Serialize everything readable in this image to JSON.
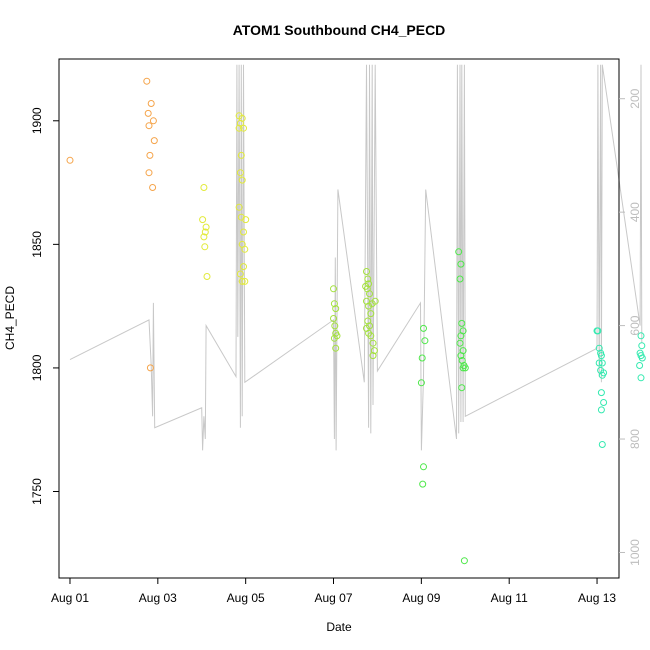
{
  "chart_data": {
    "type": "scatter",
    "title": "ATOM1 Southbound CH4_PECD",
    "xlabel": "Date",
    "ylabel": "CH4_PECD",
    "x_ticks": [
      "Aug 01",
      "Aug 03",
      "Aug 05",
      "Aug 07",
      "Aug 09",
      "Aug 11",
      "Aug 13"
    ],
    "y_ticks": [
      1750,
      1800,
      1850,
      1900
    ],
    "y_right_ticks": [
      200,
      400,
      600,
      800,
      1000
    ],
    "xlim": [
      -0.25,
      12.5
    ],
    "ylim": [
      1715,
      1925
    ],
    "y_right_lim": [
      1045,
      130
    ],
    "y_right_reversed": true,
    "grid": false,
    "colors": {
      "pressure_line": "#c8c8c8",
      "axis": "#000000",
      "right_axis": "#bdbdbd"
    },
    "series": [
      {
        "color": "#f5a44a",
        "points": [
          [
            0.0,
            1884
          ],
          [
            1.75,
            1916
          ],
          [
            1.78,
            1903
          ],
          [
            1.8,
            1898
          ],
          [
            1.82,
            1886
          ],
          [
            1.85,
            1907
          ],
          [
            1.9,
            1900
          ],
          [
            1.92,
            1892
          ],
          [
            1.8,
            1879
          ],
          [
            1.88,
            1873
          ],
          [
            1.83,
            1800
          ]
        ]
      },
      {
        "color": "#e2ea3a",
        "points": [
          [
            3.05,
            1873
          ],
          [
            3.02,
            1860
          ],
          [
            3.08,
            1855
          ],
          [
            3.05,
            1853
          ],
          [
            3.1,
            1857
          ],
          [
            3.07,
            1849
          ],
          [
            3.12,
            1837
          ],
          [
            3.85,
            1902
          ],
          [
            3.88,
            1899
          ],
          [
            3.92,
            1901
          ],
          [
            3.85,
            1897
          ],
          [
            3.95,
            1897
          ],
          [
            3.9,
            1886
          ],
          [
            3.88,
            1879
          ],
          [
            3.92,
            1876
          ],
          [
            3.85,
            1865
          ],
          [
            3.9,
            1861
          ],
          [
            4.0,
            1860
          ],
          [
            3.95,
            1855
          ],
          [
            3.92,
            1850
          ],
          [
            3.98,
            1848
          ],
          [
            3.95,
            1841
          ],
          [
            3.88,
            1838
          ],
          [
            3.92,
            1835
          ],
          [
            3.98,
            1835
          ]
        ]
      },
      {
        "color": "#a4e23e",
        "points": [
          [
            6.0,
            1832
          ],
          [
            6.02,
            1826
          ],
          [
            6.05,
            1824
          ],
          [
            6.0,
            1820
          ],
          [
            6.03,
            1817
          ],
          [
            6.05,
            1814
          ],
          [
            6.02,
            1812
          ],
          [
            6.08,
            1813
          ],
          [
            6.05,
            1808
          ],
          [
            6.75,
            1839
          ],
          [
            6.78,
            1836
          ],
          [
            6.8,
            1834
          ],
          [
            6.73,
            1833
          ],
          [
            6.77,
            1832
          ],
          [
            6.82,
            1830
          ],
          [
            6.75,
            1827
          ],
          [
            6.8,
            1825
          ],
          [
            6.85,
            1822
          ],
          [
            6.78,
            1819
          ],
          [
            6.82,
            1817
          ],
          [
            6.75,
            1816
          ],
          [
            6.8,
            1814
          ],
          [
            6.85,
            1813
          ],
          [
            6.9,
            1810
          ],
          [
            6.93,
            1807
          ],
          [
            6.9,
            1805
          ],
          [
            6.95,
            1827
          ],
          [
            6.88,
            1826
          ]
        ]
      },
      {
        "color": "#4ee84a",
        "points": [
          [
            8.05,
            1816
          ],
          [
            8.08,
            1811
          ],
          [
            8.02,
            1804
          ],
          [
            8.0,
            1794
          ],
          [
            8.05,
            1760
          ],
          [
            8.03,
            1753
          ],
          [
            8.85,
            1847
          ],
          [
            8.9,
            1842
          ],
          [
            8.88,
            1836
          ],
          [
            8.92,
            1818
          ],
          [
            8.95,
            1815
          ],
          [
            8.9,
            1813
          ],
          [
            8.88,
            1810
          ],
          [
            8.95,
            1807
          ],
          [
            8.9,
            1805
          ],
          [
            8.93,
            1803
          ],
          [
            8.97,
            1801
          ],
          [
            8.95,
            1800
          ],
          [
            9.0,
            1800
          ],
          [
            8.92,
            1792
          ],
          [
            8.98,
            1722
          ]
        ]
      },
      {
        "color": "#34eab0",
        "points": [
          [
            12.0,
            1815
          ],
          [
            12.02,
            1815
          ],
          [
            12.05,
            1808
          ],
          [
            12.08,
            1806
          ],
          [
            12.1,
            1805
          ],
          [
            12.05,
            1802
          ],
          [
            12.12,
            1802
          ],
          [
            12.08,
            1799
          ],
          [
            12.15,
            1798
          ],
          [
            12.12,
            1797
          ],
          [
            12.1,
            1790
          ],
          [
            12.15,
            1786
          ],
          [
            12.1,
            1783
          ],
          [
            12.12,
            1769
          ],
          [
            13.0,
            1813
          ],
          [
            13.02,
            1809
          ],
          [
            12.98,
            1806
          ],
          [
            13.0,
            1805
          ],
          [
            13.03,
            1804
          ],
          [
            12.97,
            1801
          ],
          [
            13.0,
            1796
          ]
        ]
      }
    ],
    "pressure_profile": [
      [
        0.0,
        660
      ],
      [
        1.8,
        590
      ],
      [
        1.85,
        670
      ],
      [
        1.88,
        760
      ],
      [
        1.9,
        560
      ],
      [
        1.93,
        780
      ],
      [
        3.0,
        745
      ],
      [
        3.02,
        820
      ],
      [
        3.05,
        760
      ],
      [
        3.08,
        800
      ],
      [
        3.1,
        600
      ],
      [
        3.78,
        690
      ],
      [
        3.8,
        140
      ],
      [
        3.82,
        620
      ],
      [
        3.85,
        140
      ],
      [
        3.88,
        780
      ],
      [
        3.9,
        140
      ],
      [
        3.92,
        760
      ],
      [
        3.95,
        140
      ],
      [
        3.98,
        700
      ],
      [
        6.0,
        590
      ],
      [
        6.02,
        800
      ],
      [
        6.04,
        480
      ],
      [
        6.06,
        820
      ],
      [
        6.1,
        360
      ],
      [
        6.7,
        700
      ],
      [
        6.75,
        140
      ],
      [
        6.8,
        780
      ],
      [
        6.82,
        140
      ],
      [
        6.85,
        790
      ],
      [
        6.88,
        140
      ],
      [
        6.9,
        740
      ],
      [
        6.95,
        140
      ],
      [
        7.0,
        680
      ],
      [
        7.98,
        560
      ],
      [
        8.0,
        820
      ],
      [
        8.05,
        690
      ],
      [
        8.1,
        360
      ],
      [
        8.8,
        800
      ],
      [
        8.82,
        140
      ],
      [
        8.85,
        790
      ],
      [
        8.88,
        140
      ],
      [
        8.9,
        770
      ],
      [
        8.92,
        140
      ],
      [
        8.95,
        770
      ],
      [
        8.98,
        140
      ],
      [
        9.0,
        760
      ],
      [
        12.0,
        640
      ],
      [
        12.02,
        140
      ],
      [
        12.05,
        690
      ],
      [
        12.08,
        140
      ],
      [
        12.1,
        700
      ],
      [
        12.12,
        140
      ],
      [
        12.98,
        600
      ],
      [
        13.0,
        140
      ],
      [
        13.02,
        630
      ]
    ]
  }
}
